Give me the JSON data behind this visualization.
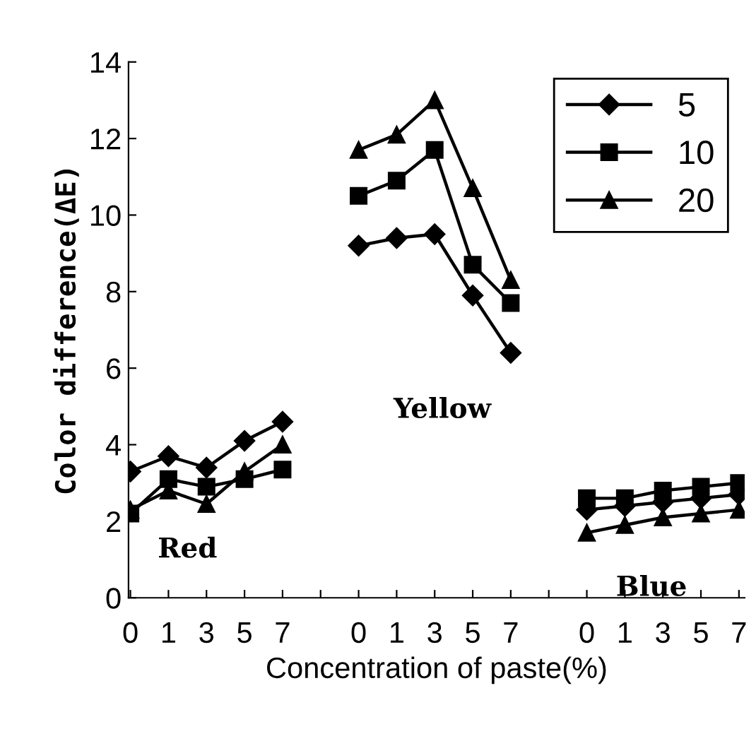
{
  "chart_data": {
    "type": "line",
    "xlabel": "Concentration of paste(%)",
    "ylabel": "Color difference(ΔE)",
    "categories": [
      "0",
      "1",
      "3",
      "5",
      "7",
      null,
      "0",
      "1",
      "3",
      "5",
      "7",
      null,
      "0",
      "1",
      "3",
      "5",
      "7"
    ],
    "series": [
      {
        "name": "5",
        "color": "#000000",
        "marker": "diamond",
        "values": [
          3.3,
          3.7,
          3.4,
          4.1,
          4.6,
          null,
          9.2,
          9.4,
          9.5,
          7.9,
          6.4,
          null,
          2.3,
          2.4,
          2.5,
          2.6,
          2.7
        ]
      },
      {
        "name": "10",
        "color": "#000000",
        "marker": "square",
        "values": [
          2.2,
          3.1,
          2.9,
          3.1,
          3.35,
          null,
          10.5,
          10.9,
          11.7,
          8.7,
          7.7,
          null,
          2.6,
          2.6,
          2.8,
          2.9,
          3.0
        ]
      },
      {
        "name": "20",
        "color": "#000000",
        "marker": "triangle",
        "values": [
          2.3,
          2.8,
          2.45,
          3.3,
          4.0,
          null,
          11.7,
          12.1,
          13.0,
          10.7,
          8.3,
          null,
          1.7,
          1.9,
          2.1,
          2.2,
          2.3
        ]
      }
    ],
    "ylim": [
      0,
      14
    ],
    "yticks": [
      0,
      2,
      4,
      6,
      8,
      10,
      12,
      14
    ],
    "line_style": "solid",
    "grid": false,
    "legend": "top right",
    "annotations": [
      "Red",
      "Yellow",
      "Blue"
    ]
  }
}
